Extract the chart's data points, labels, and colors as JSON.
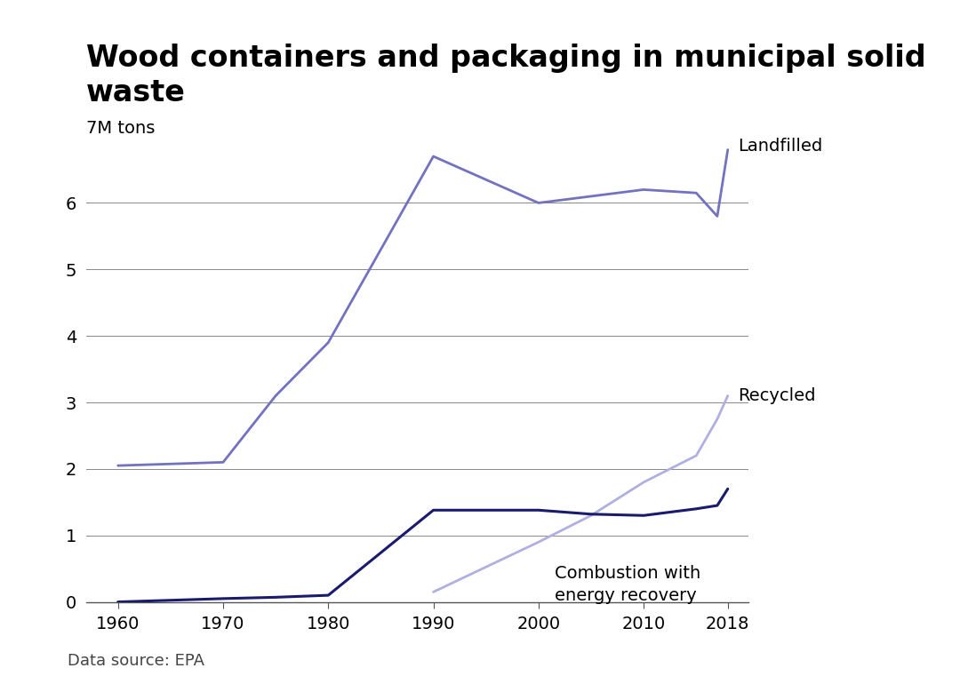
{
  "title_line1": "Wood containers and packaging in municipal solid",
  "title_line2": "waste",
  "source": "Data source: EPA",
  "landfilled": {
    "years": [
      1960,
      1970,
      1975,
      1980,
      1990,
      2000,
      2005,
      2010,
      2015,
      2017,
      2018
    ],
    "values": [
      2.05,
      2.1,
      3.1,
      3.9,
      6.7,
      6.0,
      6.1,
      6.2,
      6.15,
      5.8,
      6.8
    ],
    "color": "#7272c0",
    "label": "Landfilled"
  },
  "recycled": {
    "years": [
      1990,
      2000,
      2005,
      2010,
      2015,
      2017,
      2018
    ],
    "values": [
      0.15,
      0.9,
      1.3,
      1.8,
      2.2,
      2.75,
      3.1
    ],
    "color": "#b0b0e0",
    "label": "Recycled"
  },
  "combustion": {
    "years": [
      1960,
      1970,
      1975,
      1980,
      1990,
      2000,
      2005,
      2010,
      2015,
      2017,
      2018
    ],
    "values": [
      0.0,
      0.05,
      0.07,
      0.1,
      1.38,
      1.38,
      1.32,
      1.3,
      1.4,
      1.45,
      1.7
    ],
    "color": "#1a1a6e",
    "label": "Combustion with\nenergy recovery"
  },
  "ylim": [
    0,
    7.2
  ],
  "yticks": [
    0,
    1,
    2,
    3,
    4,
    5,
    6
  ],
  "xlim": [
    1957,
    2020
  ],
  "xticks": [
    1960,
    1970,
    1980,
    1990,
    2000,
    2010,
    2018
  ],
  "ylabel_text": "7M tons",
  "background_color": "#ffffff",
  "grid_color": "#888888",
  "title_fontsize": 24,
  "tick_fontsize": 14,
  "label_fontsize": 14,
  "source_fontsize": 13
}
